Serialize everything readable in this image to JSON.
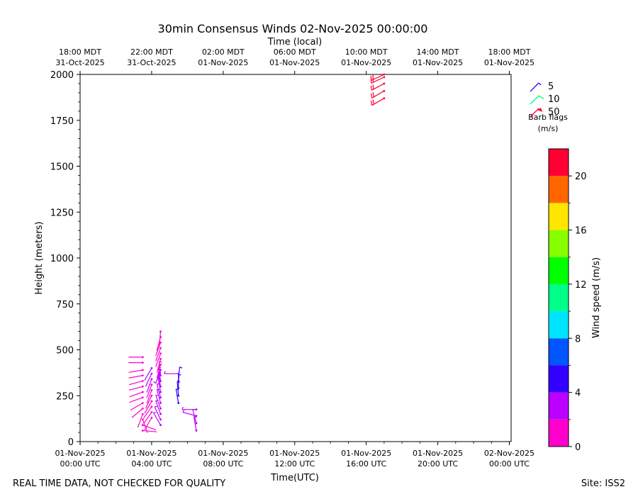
{
  "chart_data": {
    "type": "wind-barb",
    "title": "30min Consensus Winds 02-Nov-2025 00:00:00",
    "top_axis_label": "Time (local)",
    "xlabel": "Time(UTC)",
    "ylabel": "Height (meters)",
    "ylim": [
      0,
      2000
    ],
    "xlim_hours": [
      0,
      24.1
    ],
    "yticks": [
      0,
      250,
      500,
      750,
      1000,
      1250,
      1500,
      1750,
      2000
    ],
    "bottom_ticks": [
      {
        "hour": 0,
        "line1": "01-Nov-2025",
        "line2": "00:00 UTC"
      },
      {
        "hour": 4,
        "line1": "01-Nov-2025",
        "line2": "04:00 UTC"
      },
      {
        "hour": 8,
        "line1": "01-Nov-2025",
        "line2": "08:00 UTC"
      },
      {
        "hour": 12,
        "line1": "01-Nov-2025",
        "line2": "12:00 UTC"
      },
      {
        "hour": 16,
        "line1": "01-Nov-2025",
        "line2": "16:00 UTC"
      },
      {
        "hour": 20,
        "line1": "01-Nov-2025",
        "line2": "20:00 UTC"
      },
      {
        "hour": 24,
        "line1": "02-Nov-2025",
        "line2": "00:00 UTC"
      }
    ],
    "top_ticks": [
      {
        "hour": 0,
        "line1": "18:00 MDT",
        "line2": "31-Oct-2025"
      },
      {
        "hour": 4,
        "line1": "22:00 MDT",
        "line2": "31-Oct-2025"
      },
      {
        "hour": 8,
        "line1": "02:00 MDT",
        "line2": "01-Nov-2025"
      },
      {
        "hour": 12,
        "line1": "06:00 MDT",
        "line2": "01-Nov-2025"
      },
      {
        "hour": 16,
        "line1": "10:00 MDT",
        "line2": "01-Nov-2025"
      },
      {
        "hour": 20,
        "line1": "14:00 MDT",
        "line2": "01-Nov-2025"
      },
      {
        "hour": 24,
        "line1": "18:00 MDT",
        "line2": "01-Nov-2025"
      }
    ],
    "colorbar": {
      "label": "Wind speed (m/s)",
      "range": [
        0,
        22
      ],
      "ticks": [
        0,
        4,
        8,
        12,
        16,
        20
      ],
      "colors": [
        "#ff00cc",
        "#bb00ff",
        "#3300ff",
        "#0055ff",
        "#00e5ff",
        "#00ff88",
        "#00ff00",
        "#88ff00",
        "#ffe600",
        "#ff6600",
        "#ff0033"
      ]
    },
    "barb_legend": {
      "title_line1": "Barb flags",
      "title_line2": "(m/s)",
      "entries": [
        {
          "label": "5",
          "color": "#3300ff"
        },
        {
          "label": "10",
          "color": "#00ff88"
        },
        {
          "label": "50",
          "color": "#ff0033"
        }
      ]
    },
    "series": [
      {
        "name": "03:30 UTC",
        "time": 3.5,
        "heights": [
          60,
          90,
          120,
          150,
          180,
          210,
          240,
          270,
          300,
          330,
          360,
          390,
          430,
          460
        ],
        "speeds": [
          1.5,
          1.2,
          1.0,
          1.3,
          1.2,
          1.4,
          1.3,
          1.4,
          1.4,
          1.5,
          1.5,
          1.6,
          1.8,
          1.8
        ],
        "directions": [
          95,
          110,
          160,
          200,
          230,
          240,
          250,
          250,
          255,
          255,
          260,
          260,
          270,
          270
        ]
      },
      {
        "name": "04:00 UTC",
        "time": 4.0,
        "heights": [
          130,
          160,
          190,
          220,
          250,
          280,
          310,
          340,
          370,
          400
        ],
        "speeds": [
          1.4,
          1.5,
          1.7,
          1.8,
          1.8,
          1.9,
          1.9,
          2.0,
          2.1,
          2.2
        ],
        "directions": [
          210,
          215,
          215,
          210,
          205,
          200,
          200,
          200,
          205,
          210
        ]
      },
      {
        "name": "04:30 UTC",
        "time": 4.5,
        "heights": [
          90,
          120,
          150,
          180,
          210,
          240,
          270,
          300,
          330,
          360,
          390,
          420,
          450,
          480,
          510,
          540,
          570,
          600
        ],
        "speeds": [
          3.0,
          3.2,
          2.8,
          3.0,
          3.2,
          3.3,
          3.4,
          3.5,
          3.2,
          3.0,
          2.8,
          1.9,
          1.8,
          1.9,
          1.7,
          1.6,
          1.5,
          1.6
        ],
        "directions": [
          330,
          335,
          340,
          340,
          345,
          345,
          350,
          350,
          350,
          355,
          200,
          195,
          195,
          200,
          200,
          200,
          195,
          185
        ]
      },
      {
        "name": "05:30 UTC",
        "time": 5.5,
        "heights": [
          210,
          250,
          290,
          330,
          370
        ],
        "speeds": [
          4.5,
          4.2,
          4.3,
          4.0,
          2.8
        ],
        "directions": [
          350,
          355,
          0,
          5,
          270
        ]
      },
      {
        "name": "06:30 UTC",
        "time": 6.5,
        "heights": [
          60,
          100,
          140,
          175
        ],
        "speeds": [
          2.8,
          2.9,
          3.0,
          2.6
        ],
        "directions": [
          350,
          345,
          285,
          270
        ]
      },
      {
        "name": "17:00 UTC",
        "time": 17.0,
        "heights": [
          1870,
          1910,
          1950,
          1985,
          2000
        ],
        "speeds": [
          21.5,
          21.8,
          22.0,
          21.6,
          21.5
        ],
        "directions": [
          240,
          240,
          242,
          245,
          245
        ]
      }
    ],
    "footer_left": "REAL TIME DATA, NOT CHECKED FOR QUALITY",
    "footer_right": "Site: ISS2"
  }
}
